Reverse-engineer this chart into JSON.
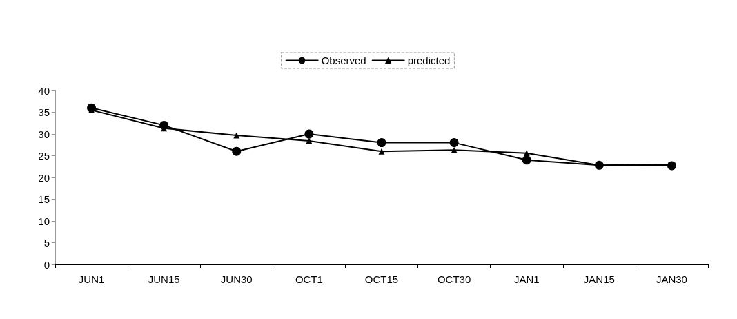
{
  "chart_data": {
    "type": "line",
    "categories": [
      "JUN1",
      "JUN15",
      "JUN30",
      "OCT1",
      "OCT15",
      "OCT30",
      "JAN1",
      "JAN15",
      "JAN30"
    ],
    "series": [
      {
        "name": "Observed",
        "color": "#000000",
        "marker": "circle",
        "values": [
          36,
          32,
          26,
          30,
          28,
          28,
          24,
          22.8,
          22.7
        ]
      },
      {
        "name": "predicted",
        "color": "#000000",
        "marker": "triangle",
        "values": [
          35.5,
          31.3,
          29.7,
          28.4,
          26,
          26.3,
          25.6,
          22.8,
          23
        ]
      }
    ],
    "ylim": [
      0,
      40
    ],
    "yticks": [
      0,
      5,
      10,
      15,
      20,
      25,
      30,
      35,
      40
    ],
    "grid": false,
    "legend": "top",
    "line_style": "solid"
  }
}
